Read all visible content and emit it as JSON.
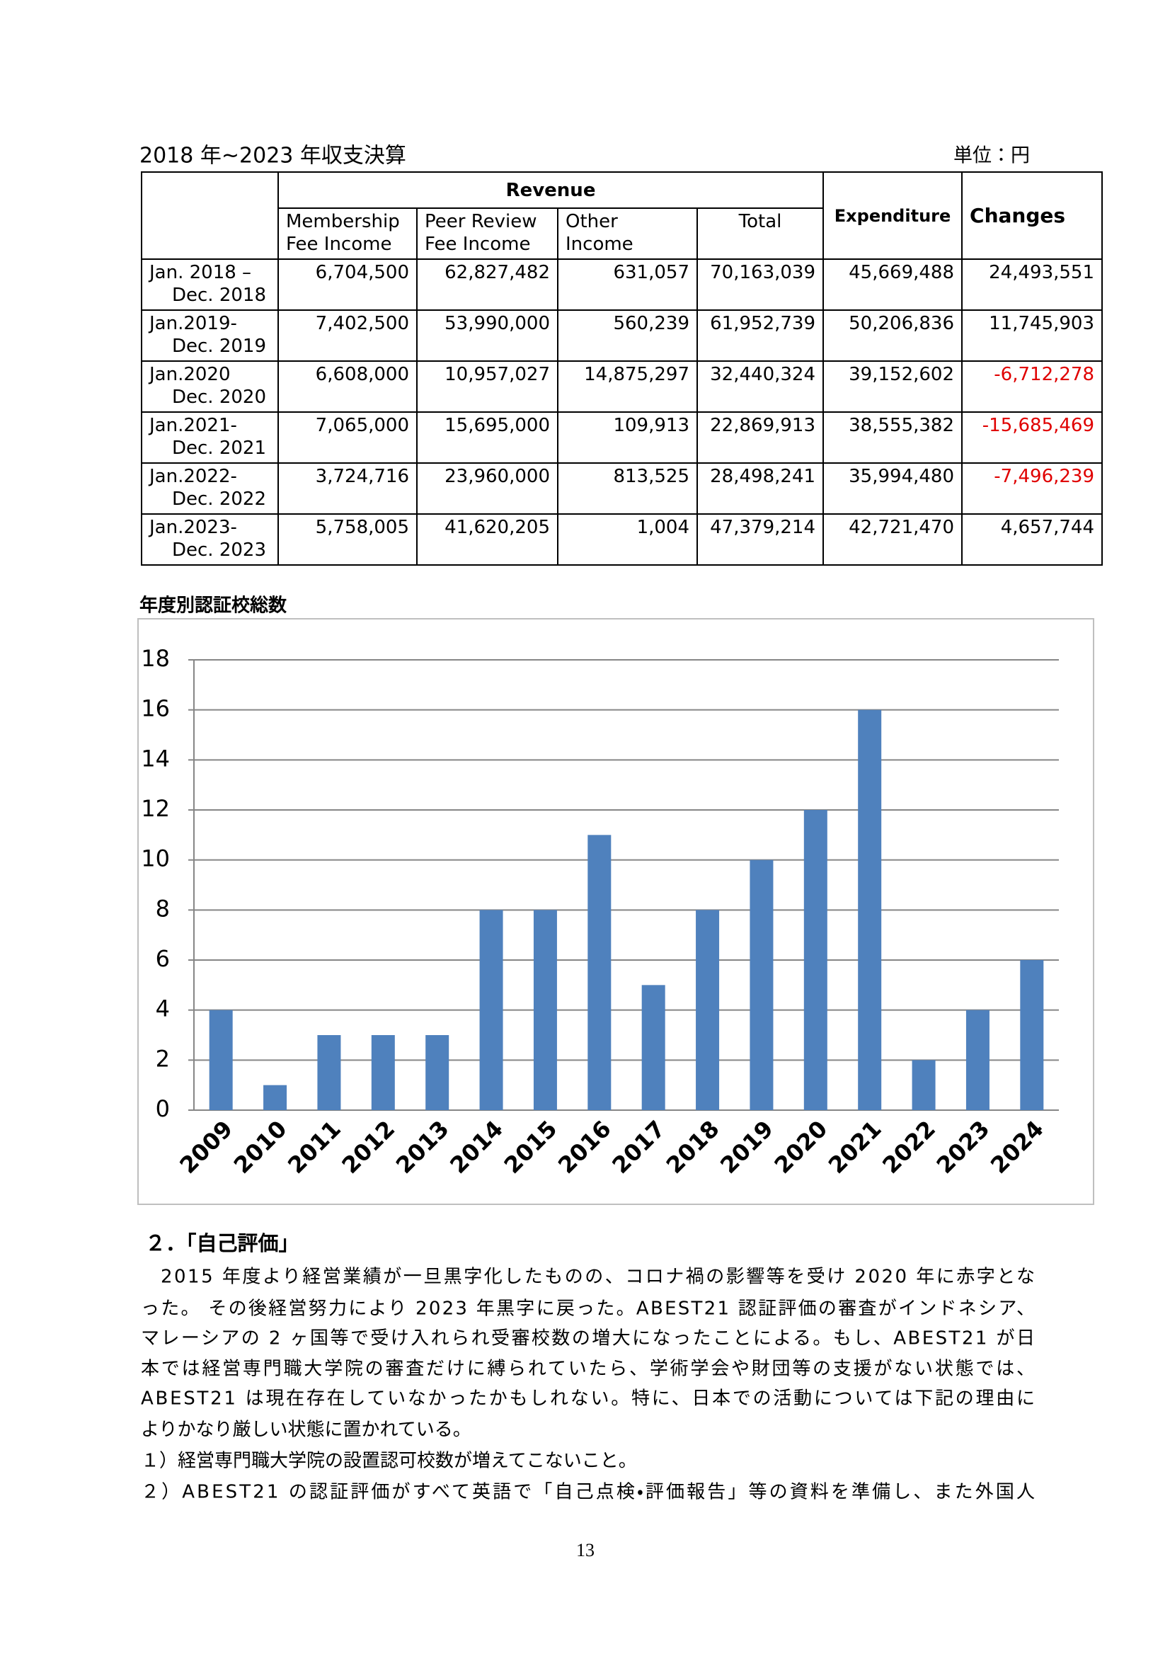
{
  "table": {
    "title": "2018 年~2023 年収支決算",
    "unit": "単位：円",
    "header": {
      "group": "Revenue",
      "columns": [
        [
          "Membership",
          "Fee Income"
        ],
        [
          "Peer Review",
          "Fee Income"
        ],
        [
          "Other",
          "Income"
        ],
        [
          "Total"
        ]
      ],
      "expenditure": "Expenditure",
      "changes": "Changes"
    },
    "rows": [
      {
        "period": [
          "Jan. 2018 –",
          "Dec. 2018"
        ],
        "cells": [
          "6,704,500",
          "62,827,482",
          "631,057",
          "70,163,039",
          "45,669,488",
          "24,493,551"
        ]
      },
      {
        "period": [
          "Jan.2019-",
          "Dec. 2019"
        ],
        "cells": [
          "7,402,500",
          "53,990,000",
          "560,239",
          "61,952,739",
          "50,206,836",
          "11,745,903"
        ]
      },
      {
        "period": [
          "Jan.2020",
          "Dec. 2020"
        ],
        "cells": [
          "6,608,000",
          "10,957,027",
          "14,875,297",
          "32,440,324",
          "39,152,602",
          "-6,712,278"
        ]
      },
      {
        "period": [
          "Jan.2021-",
          "Dec. 2021"
        ],
        "cells": [
          "7,065,000",
          "15,695,000",
          "109,913",
          "22,869,913",
          "38,555,382",
          "-15,685,469"
        ]
      },
      {
        "period": [
          "Jan.2022-",
          "Dec. 2022"
        ],
        "cells": [
          "3,724,716",
          "23,960,000",
          "813,525",
          "28,498,241",
          "35,994,480",
          "-7,496,239"
        ]
      },
      {
        "period": [
          "Jan.2023-",
          "Dec. 2023"
        ],
        "cells": [
          "5,758,005",
          "41,620,205",
          "1,004",
          "47,379,214",
          "42,721,470",
          "4,657,744"
        ]
      }
    ],
    "negative_color": "#e00000"
  },
  "chart_data": {
    "type": "bar",
    "title": "年度別認証校総数",
    "categories": [
      "2009",
      "2010",
      "2011",
      "2012",
      "2013",
      "2014",
      "2015",
      "2016",
      "2017",
      "2018",
      "2019",
      "2020",
      "2021",
      "2022",
      "2023",
      "2024"
    ],
    "values": [
      4,
      1,
      3,
      3,
      3,
      8,
      8,
      11,
      5,
      8,
      10,
      12,
      16,
      2,
      4,
      6
    ],
    "color": "#4f81bd",
    "ylim": [
      0,
      18
    ],
    "yticks": [
      0,
      2,
      4,
      6,
      8,
      10,
      12,
      14,
      16,
      18
    ],
    "grid": true
  },
  "section": {
    "heading": "２．「自己評価」",
    "paragraph": [
      "2015 年度より経営業績が一旦黒字化したものの、コロナ禍の影響等を受け 2020 年に赤字とな",
      "った。 その後経営努力により 2023 年黒字に戻った。ABEST21 認証評価の審査がインドネシア、",
      "マレーシアの 2 ヶ国等で受け入れられ受審校数の増大になったことによる。もし、ABEST21 が日",
      "本では経営専門職大学院の審査だけに縛られていたら、学術学会や財団等の支援がない状態では、",
      "ABEST21 は現在存在していなかったかもしれない。特に、日本での活動については下記の理由に",
      "よりかなり厳しい状態に置かれている。"
    ],
    "items": [
      "１）経営専門職大学院の設置認可校数が増えてこないこと。",
      "２）ABEST21 の認証評価がすべて英語で「自己点検・評価報告」等の資料を準備し、また外国人"
    ]
  },
  "page_number": "13"
}
